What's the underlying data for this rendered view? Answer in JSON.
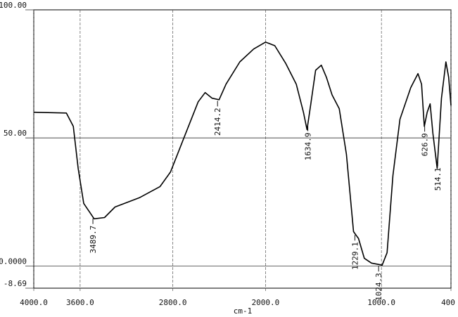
{
  "chart_data": {
    "type": "line",
    "x_label": "cm-1",
    "x": [
      4000,
      3719,
      3659,
      3617,
      3569,
      3479,
      3389,
      3299,
      3090,
      2910,
      2820,
      2701,
      2581,
      2521,
      2461,
      2401,
      2341,
      2222,
      2102,
      2000,
      1920,
      1827,
      1735,
      1673,
      1642,
      1611,
      1568,
      1519,
      1475,
      1426,
      1364,
      1302,
      1241,
      1198,
      1148,
      1086,
      994,
      951,
      901,
      840,
      747,
      685,
      654,
      630,
      605,
      580,
      556,
      519,
      482,
      444,
      420,
      400
    ],
    "series": [
      {
        "color": "#000000",
        "values": [
          60.0,
          59.7,
          54.5,
          38.1,
          24.4,
          18.4,
          18.9,
          23.0,
          26.6,
          31.0,
          36.7,
          50.4,
          64.1,
          67.7,
          65.5,
          64.9,
          71.0,
          79.7,
          84.7,
          87.4,
          86.0,
          79.2,
          71.0,
          60.0,
          53.2,
          62.7,
          76.4,
          78.4,
          73.7,
          66.8,
          61.4,
          43.6,
          13.4,
          10.7,
          3.0,
          1.1,
          0.3,
          5.2,
          35.3,
          57.3,
          69.6,
          75.1,
          71.0,
          54.5,
          60.0,
          63.3,
          51.8,
          38.1,
          65.5,
          79.7,
          73.7,
          62.7
        ]
      }
    ],
    "peak_labels": [
      3489.7,
      2414.2,
      1634.9,
      1229.1,
      1024.3,
      626.9,
      514.1
    ],
    "xlim": [
      4000,
      400
    ],
    "xticks": [
      {
        "value": 4000,
        "label": "4000.0"
      },
      {
        "value": 3600,
        "label": "3600.0"
      },
      {
        "value": 2800,
        "label": "2800.0"
      },
      {
        "value": 2000,
        "label": "2000.0"
      },
      {
        "value": 1000,
        "label": "1000.0"
      },
      {
        "value": 400,
        "label": "400"
      }
    ],
    "ylim": [
      -8.69,
      100
    ],
    "yticks": [
      {
        "value": 100,
        "label": "100.00"
      },
      {
        "value": 50,
        "label": "50.00"
      },
      {
        "value": 0,
        "label": "0.0000"
      },
      {
        "value": -8.69,
        "label": "-8.69"
      }
    ],
    "grid": true
  }
}
